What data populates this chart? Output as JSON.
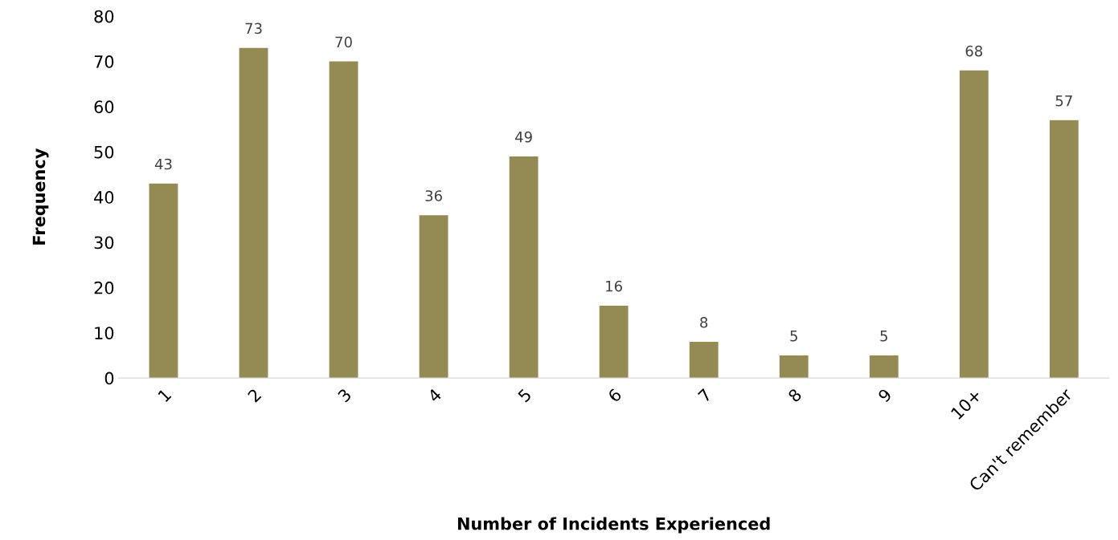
{
  "chart_data": {
    "type": "bar",
    "xlabel": "Number of Incidents Experienced",
    "ylabel": "Frequency",
    "categories": [
      "1",
      "2",
      "3",
      "4",
      "5",
      "6",
      "7",
      "8",
      "9",
      "10+",
      "Can't remember"
    ],
    "values": [
      43,
      73,
      70,
      36,
      49,
      16,
      8,
      5,
      5,
      68,
      57
    ],
    "color": "#948a54",
    "ylim": [
      0,
      80
    ],
    "yticks": [
      0,
      10,
      20,
      30,
      40,
      50,
      60,
      70,
      80
    ],
    "data_labels": true,
    "grid": false,
    "legend": false
  }
}
